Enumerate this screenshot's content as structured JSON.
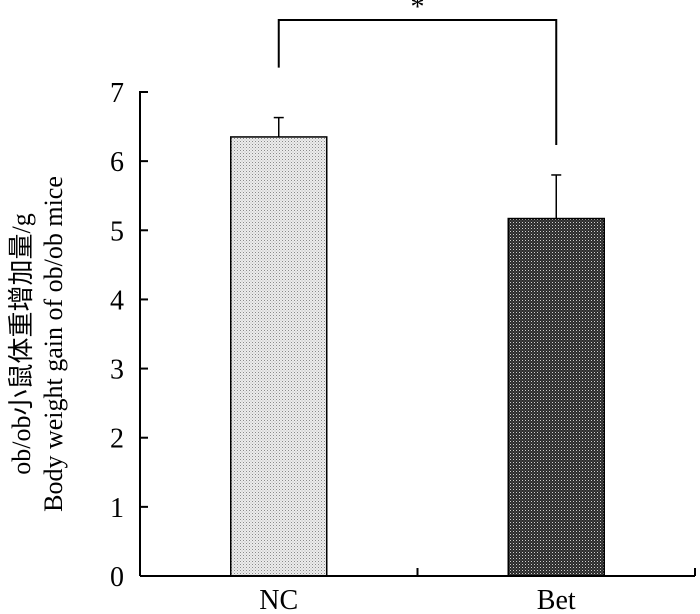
{
  "chart_data": {
    "type": "bar",
    "categories": [
      "NC",
      "Bet"
    ],
    "values": [
      6.35,
      5.17
    ],
    "error": [
      0.28,
      0.63
    ],
    "ylim": [
      0,
      7
    ],
    "yticks": [
      "0",
      "1",
      "2",
      "3",
      "4",
      "5",
      "6",
      "7"
    ],
    "ylabel_lines": [
      "ob/ob小鼠体重增加量/g",
      "Body weight gain of ob/ob mice"
    ],
    "xlabel": "",
    "title": "",
    "grid": false,
    "significance": {
      "between": [
        "NC",
        "Bet"
      ],
      "label": "*"
    },
    "bar_fills": [
      "light-dotted",
      "dark-dotted"
    ]
  }
}
